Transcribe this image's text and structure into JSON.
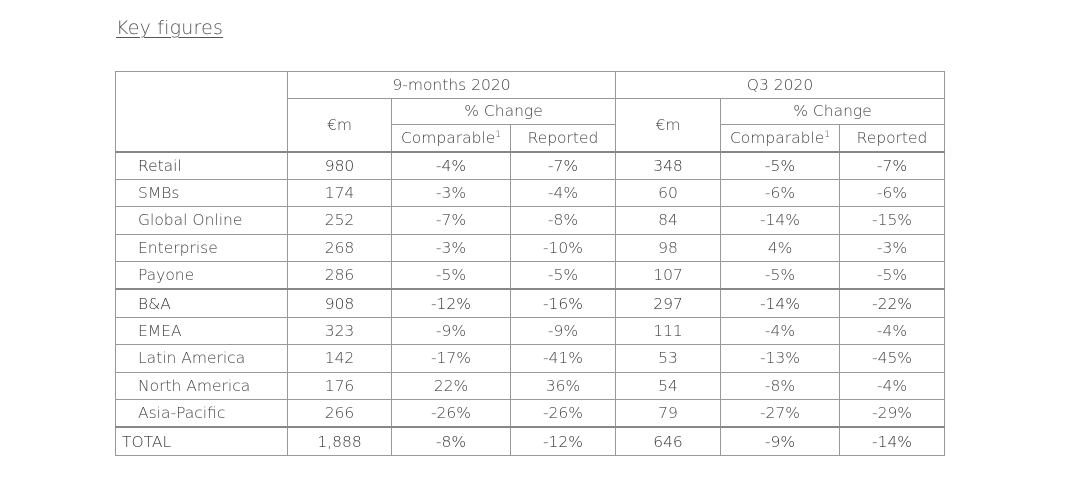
{
  "title": "Key figures",
  "header": {
    "period1": "9-months 2020",
    "period2": "Q3 2020",
    "em": "€m",
    "pct_change": "% Change",
    "comparable": "Comparable",
    "footnote": "1",
    "reported": "Reported"
  },
  "rows": [
    {
      "label": "Retail",
      "c1": "980",
      "c2": "-4%",
      "c3": "-7%",
      "c4": "348",
      "c5": "-5%",
      "c6": "-7%"
    },
    {
      "label": "SMBs",
      "c1": "174",
      "c2": "-3%",
      "c3": "-4%",
      "c4": "60",
      "c5": "-6%",
      "c6": "-6%"
    },
    {
      "label": "Global Online",
      "c1": "252",
      "c2": "-7%",
      "c3": "-8%",
      "c4": "84",
      "c5": "-14%",
      "c6": "-15%"
    },
    {
      "label": "Enterprise",
      "c1": "268",
      "c2": "-3%",
      "c3": "-10%",
      "c4": "98",
      "c5": "4%",
      "c6": "-3%"
    },
    {
      "label": "Payone",
      "c1": "286",
      "c2": "-5%",
      "c3": "-5%",
      "c4": "107",
      "c5": "-5%",
      "c6": "-5%"
    },
    {
      "label": "B&A",
      "c1": "908",
      "c2": "-12%",
      "c3": "-16%",
      "c4": "297",
      "c5": "-14%",
      "c6": "-22%"
    },
    {
      "label": "EMEA",
      "c1": "323",
      "c2": "-9%",
      "c3": "-9%",
      "c4": "111",
      "c5": "-4%",
      "c6": "-4%"
    },
    {
      "label": "Latin America",
      "c1": "142",
      "c2": "-17%",
      "c3": "-41%",
      "c4": "53",
      "c5": "-13%",
      "c6": "-45%"
    },
    {
      "label": "North America",
      "c1": "176",
      "c2": "22%",
      "c3": "36%",
      "c4": "54",
      "c5": "-8%",
      "c6": "-4%"
    },
    {
      "label": "Asia-Pacific",
      "c1": "266",
      "c2": "-26%",
      "c3": "-26%",
      "c4": "79",
      "c5": "-27%",
      "c6": "-29%"
    },
    {
      "label": "TOTAL",
      "c1": "1,888",
      "c2": "-8%",
      "c3": "-12%",
      "c4": "646",
      "c5": "-9%",
      "c6": "-14%"
    }
  ]
}
